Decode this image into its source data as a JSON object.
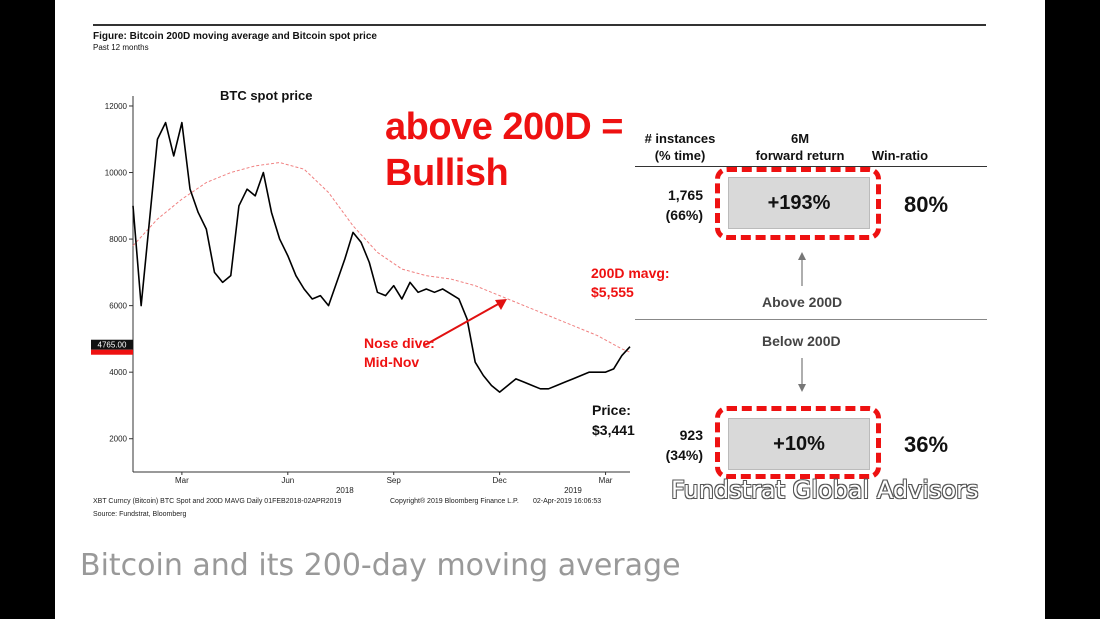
{
  "figure": {
    "title": "Figure: Bitcoin 200D moving average and Bitcoin spot price",
    "subtitle": "Past 12 months",
    "source": "Source: Fundstrat, Bloomberg",
    "footer_left": "XBT Curncy (Bitcoin) BTC Spot and 200D MAVG  Daily 01FEB2018-02APR2019",
    "footer_mid": "Copyright® 2019 Bloomberg Finance L.P.",
    "footer_right": "02-Apr-2019 16:06:53"
  },
  "annotations": {
    "headline_line1": "above 200D =",
    "headline_line2": "Bullish",
    "mavg_line1": "200D mavg:",
    "mavg_line2": "$5,555",
    "nosedive_line1": "Nose dive:",
    "nosedive_line2": "Mid-Nov",
    "price_line1": "Price:",
    "price_line2": "$3,441",
    "last_price_tag": "4765.00"
  },
  "table": {
    "col1_line1": "# instances",
    "col1_line2": "(% time)",
    "col2_line1": "6M",
    "col2_line2": "forward return",
    "col3": "Win-ratio",
    "above_label": "Above 200D",
    "below_label": "Below 200D",
    "above": {
      "count": "1,765",
      "pct": "(66%)",
      "return": "+193%",
      "win": "80%"
    },
    "below": {
      "count": "923",
      "pct": "(34%)",
      "return": "+10%",
      "win": "36%"
    }
  },
  "caption": "Bitcoin and its 200-day moving average",
  "watermark": "Fundstrat Global Advisors",
  "colors": {
    "price_line": "#000000",
    "mavg_line": "#f08080",
    "accent_red": "#e11111",
    "box_fill": "#d9d9d9"
  },
  "chart_data": {
    "type": "line",
    "title": "BTC spot price",
    "ylim": [
      1000,
      12300
    ],
    "yticks": [
      2000,
      4000,
      6000,
      8000,
      10000,
      12000
    ],
    "xlim": [
      0,
      61
    ],
    "xticks": [
      {
        "label": "Mar",
        "x": 6
      },
      {
        "label": "Jun",
        "x": 19
      },
      {
        "label": "Sep",
        "x": 32
      },
      {
        "label": "Dec",
        "x": 45
      },
      {
        "label": "Mar",
        "x": 58
      }
    ],
    "year_labels": [
      {
        "label": "2018",
        "x": 26
      },
      {
        "label": "2019",
        "x": 54
      }
    ],
    "series": [
      {
        "name": "BTC spot price",
        "x": [
          0,
          1,
          2,
          3,
          4,
          5,
          6,
          7,
          8,
          9,
          10,
          11,
          12,
          13,
          14,
          15,
          16,
          17,
          18,
          19,
          20,
          21,
          22,
          23,
          24,
          25,
          26,
          27,
          28,
          29,
          30,
          31,
          32,
          33,
          34,
          35,
          36,
          37,
          38,
          39,
          40,
          41,
          42,
          43,
          44,
          45,
          46,
          47,
          48,
          49,
          50,
          51,
          52,
          53,
          54,
          55,
          56,
          57,
          58,
          59,
          60,
          61
        ],
        "values": [
          9000,
          6000,
          8500,
          11000,
          11500,
          10500,
          11500,
          9500,
          8800,
          8300,
          7000,
          6700,
          6900,
          9000,
          9500,
          9300,
          10000,
          8800,
          8000,
          7500,
          6900,
          6500,
          6200,
          6300,
          6000,
          6700,
          7400,
          8200,
          7900,
          7300,
          6400,
          6300,
          6600,
          6200,
          6700,
          6400,
          6500,
          6400,
          6500,
          6350,
          6200,
          5600,
          4300,
          3900,
          3600,
          3400,
          3600,
          3800,
          3700,
          3600,
          3500,
          3500,
          3600,
          3700,
          3800,
          3900,
          4000,
          4000,
          4000,
          4100,
          4500,
          4765
        ]
      },
      {
        "name": "200D MAVG",
        "x": [
          0,
          3,
          6,
          9,
          12,
          15,
          18,
          21,
          24,
          27,
          30,
          33,
          36,
          39,
          42,
          45,
          48,
          51,
          54,
          57,
          60,
          61
        ],
        "values": [
          7800,
          8600,
          9200,
          9700,
          10000,
          10200,
          10300,
          10100,
          9400,
          8400,
          7600,
          7100,
          6900,
          6800,
          6600,
          6300,
          6000,
          5700,
          5400,
          5100,
          4700,
          4600
        ]
      }
    ]
  }
}
